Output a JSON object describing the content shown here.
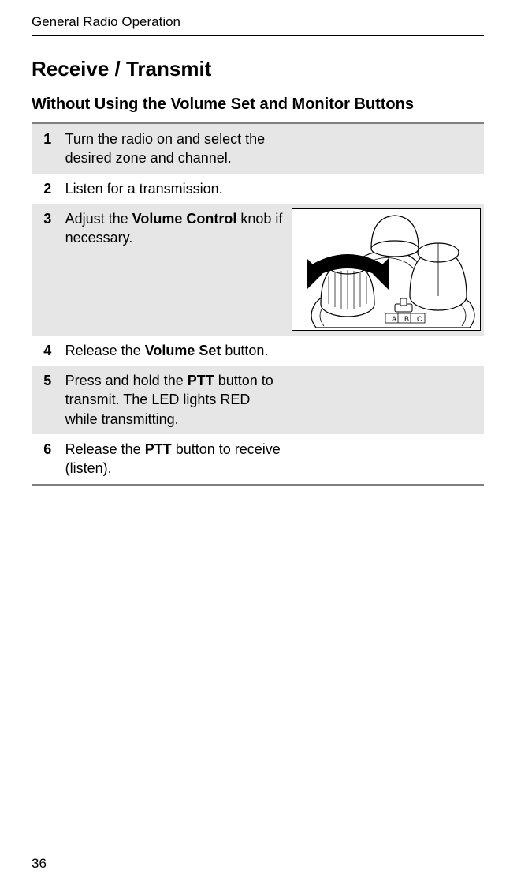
{
  "header": {
    "running_head": "General Radio Operation"
  },
  "section": {
    "title": "Receive / Transmit",
    "subtitle": "Without Using the Volume Set and Monitor Buttons"
  },
  "steps": [
    {
      "num": "1",
      "shaded": true,
      "segments": [
        {
          "text": "Turn the radio on and select the desired zone and channel.",
          "bold": false
        }
      ],
      "has_image": false
    },
    {
      "num": "2",
      "shaded": false,
      "segments": [
        {
          "text": "Listen for a transmission.",
          "bold": false
        }
      ],
      "has_image": false
    },
    {
      "num": "3",
      "shaded": true,
      "segments": [
        {
          "text": "Adjust the ",
          "bold": false
        },
        {
          "text": "Volume Control",
          "bold": true
        },
        {
          "text": " knob if necessary.",
          "bold": false
        }
      ],
      "has_image": true
    },
    {
      "num": "4",
      "shaded": false,
      "segments": [
        {
          "text": "Release the ",
          "bold": false
        },
        {
          "text": "Volume Set",
          "bold": true
        },
        {
          "text": " button.",
          "bold": false
        }
      ],
      "has_image": false
    },
    {
      "num": "5",
      "shaded": true,
      "segments": [
        {
          "text": "Press and hold the ",
          "bold": false
        },
        {
          "text": "PTT",
          "bold": true
        },
        {
          "text": " button to transmit. The LED lights RED while transmitting.",
          "bold": false
        }
      ],
      "has_image": false
    },
    {
      "num": "6",
      "shaded": false,
      "segments": [
        {
          "text": "Release the ",
          "bold": false
        },
        {
          "text": "PTT",
          "bold": true
        },
        {
          "text": " button to receive (listen).",
          "bold": false
        }
      ],
      "has_image": false
    }
  ],
  "illustration": {
    "labels": {
      "a": "A",
      "b": "B",
      "c": "C"
    }
  },
  "footer": {
    "page_number": "36"
  },
  "colors": {
    "row_alt_bg": "#e6e6e6",
    "rule": "#808080",
    "text": "#000000",
    "bg": "#ffffff"
  }
}
